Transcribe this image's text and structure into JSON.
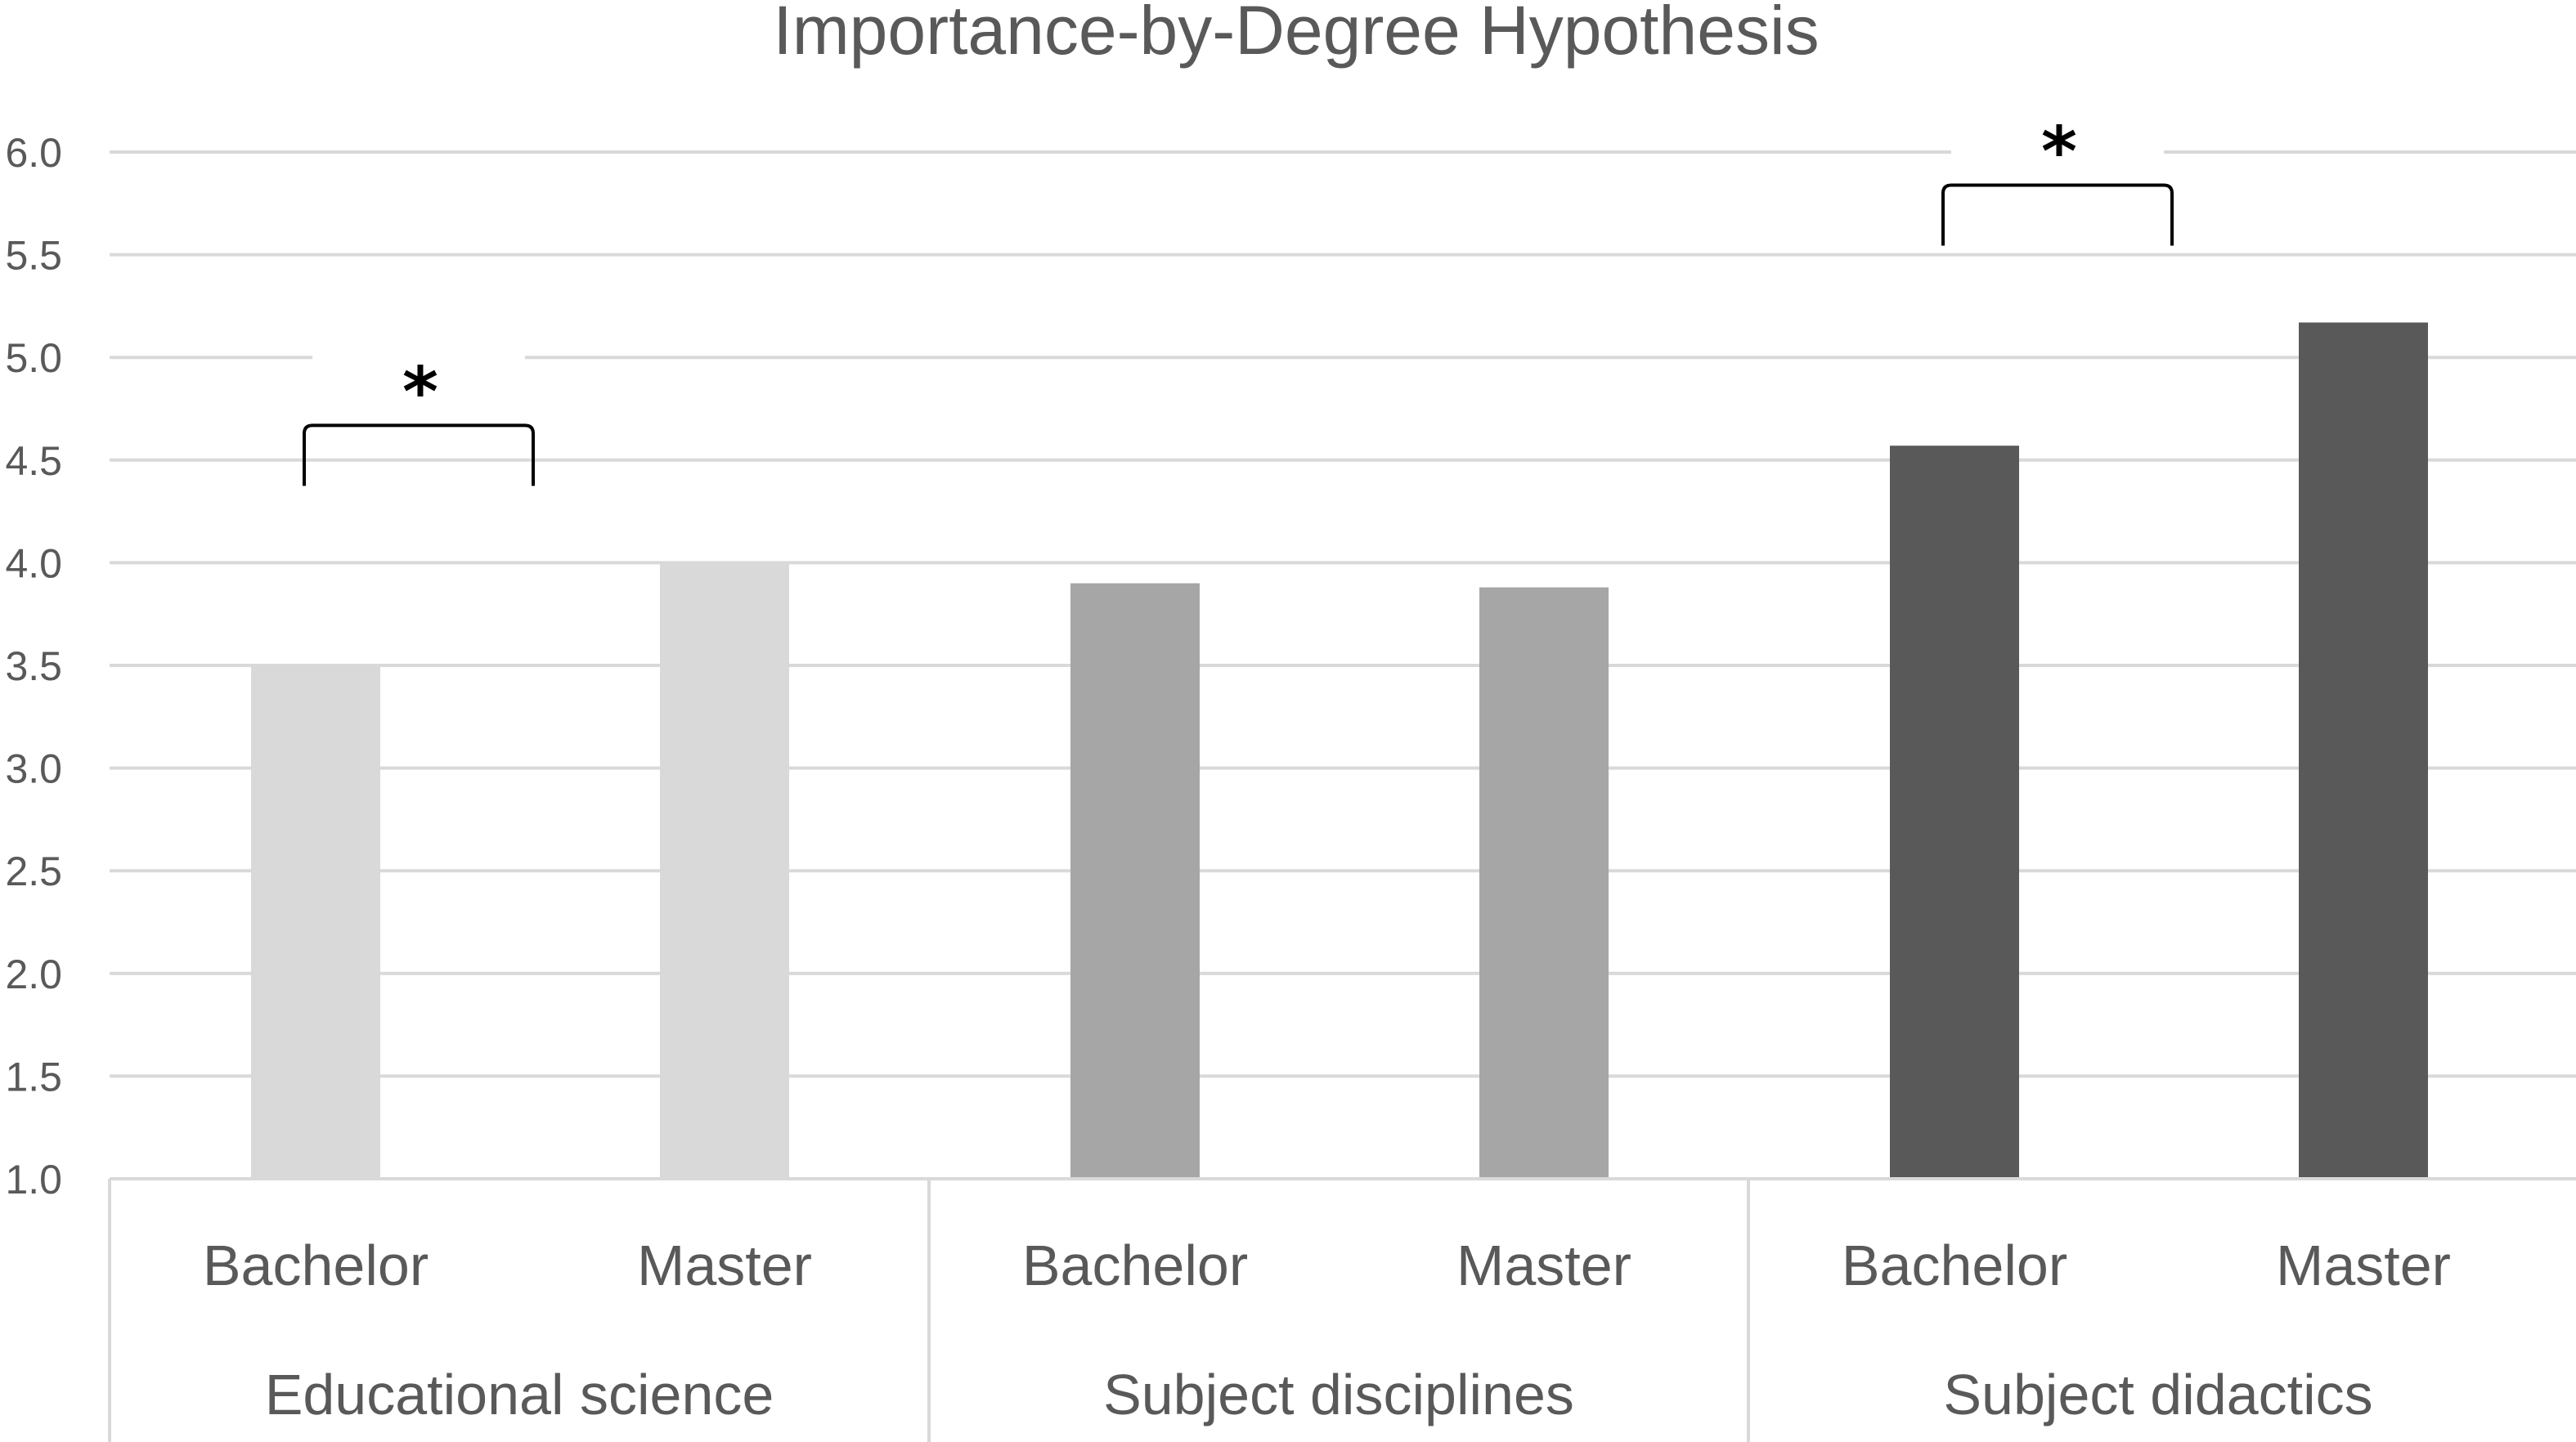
{
  "chart_data": {
    "type": "bar",
    "title": "Importance-by-Degree Hypothesis",
    "xlabel": "",
    "ylabel": "",
    "ylim": [
      1.0,
      6.0
    ],
    "yticks": [
      "1.0",
      "1.5",
      "2.0",
      "2.5",
      "3.0",
      "3.5",
      "4.0",
      "4.5",
      "5.0",
      "5.5",
      "6.0"
    ],
    "grid": true,
    "legend": "none",
    "groups": [
      {
        "name": "Educational science",
        "color": "#d9d9d9",
        "bars": [
          {
            "category": "Bachelor",
            "value": 3.5
          },
          {
            "category": "Master",
            "value": 4.0
          }
        ],
        "significance": "*"
      },
      {
        "name": "Subject disciplines",
        "color": "#a6a6a6",
        "bars": [
          {
            "category": "Bachelor",
            "value": 3.9
          },
          {
            "category": "Master",
            "value": 3.88
          }
        ],
        "significance": ""
      },
      {
        "name": "Subject didactics",
        "color": "#595959",
        "bars": [
          {
            "category": "Bachelor",
            "value": 4.57
          },
          {
            "category": "Master",
            "value": 5.17
          }
        ],
        "significance": "*"
      }
    ]
  }
}
